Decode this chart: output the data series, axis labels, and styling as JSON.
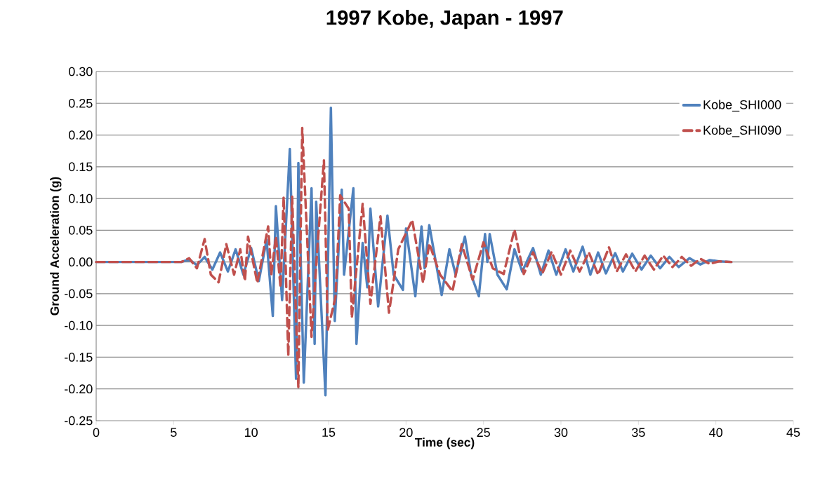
{
  "chart_data": {
    "type": "line",
    "title": "1997 Kobe, Japan - 1997",
    "xlabel": "Time (sec)",
    "ylabel": "Ground Acceleration (g)",
    "xlim": [
      0,
      45
    ],
    "xticks": [
      0,
      5,
      10,
      15,
      20,
      25,
      30,
      35,
      40,
      45
    ],
    "ylim": [
      -0.25,
      0.3
    ],
    "yticks": [
      {
        "value": -0.25,
        "label": "-0.25"
      },
      {
        "value": -0.2,
        "label": "-0.20"
      },
      {
        "value": -0.15,
        "label": "-0.15"
      },
      {
        "value": -0.1,
        "label": "-0.10"
      },
      {
        "value": -0.05,
        "label": "-0.05"
      },
      {
        "value": 0,
        "label": "0.00"
      },
      {
        "value": 0.05,
        "label": "0.05"
      },
      {
        "value": 0.1,
        "label": "0.10"
      },
      {
        "value": 0.15,
        "label": "0.15"
      },
      {
        "value": 0.2,
        "label": "0.20"
      },
      {
        "value": 0.25,
        "label": "0.25"
      },
      {
        "value": 0.3,
        "label": "0.30"
      }
    ],
    "grid": "y",
    "legend": "top right",
    "marker": "none",
    "series": [
      {
        "name": "Kobe_SHI000",
        "color": "#4f81bd",
        "line_style": "solid",
        "x": [
          0,
          5.5,
          6.0,
          6.5,
          7.0,
          7.5,
          8.0,
          8.5,
          9.0,
          9.5,
          10.0,
          10.5,
          11.0,
          11.4,
          11.6,
          12.0,
          12.5,
          12.9,
          13.05,
          13.4,
          13.9,
          14.1,
          14.2,
          14.8,
          15.15,
          15.4,
          15.85,
          16.0,
          16.6,
          16.8,
          17.2,
          17.5,
          17.7,
          18.2,
          18.8,
          19.2,
          19.8,
          20.0,
          20.6,
          21.0,
          21.2,
          21.5,
          22.3,
          22.8,
          23.2,
          23.8,
          24.2,
          24.7,
          25.1,
          25.25,
          25.4,
          25.9,
          26.5,
          27.0,
          27.5,
          28.2,
          28.7,
          29.2,
          29.7,
          30.3,
          30.8,
          31.4,
          31.9,
          32.4,
          32.9,
          33.5,
          34.0,
          34.6,
          35.2,
          35.8,
          36.4,
          37.0,
          37.6,
          38.3,
          39.0,
          39.6,
          40.2,
          41.0
        ],
        "values": [
          0,
          0,
          0.004,
          -0.005,
          0.008,
          -0.012,
          0.015,
          -0.015,
          0.02,
          -0.02,
          0.022,
          -0.03,
          0.035,
          -0.085,
          0.088,
          -0.06,
          0.178,
          -0.184,
          0.156,
          -0.19,
          0.116,
          -0.129,
          0.095,
          -0.21,
          0.243,
          -0.093,
          0.114,
          -0.02,
          0.116,
          -0.129,
          0.03,
          -0.04,
          0.084,
          -0.07,
          0.073,
          -0.02,
          -0.044,
          0.053,
          -0.054,
          0.056,
          -0.01,
          0.058,
          -0.052,
          0.02,
          -0.02,
          0.04,
          -0.02,
          -0.054,
          0.044,
          0.0,
          0.044,
          -0.02,
          -0.043,
          0.02,
          -0.015,
          0.022,
          -0.02,
          0.018,
          -0.02,
          0.02,
          -0.015,
          0.024,
          -0.02,
          0.015,
          -0.018,
          0.014,
          -0.015,
          0.013,
          -0.012,
          0.01,
          -0.01,
          0.008,
          -0.008,
          0.006,
          -0.004,
          0.003,
          0.001,
          0
        ]
      },
      {
        "name": "Kobe_SHI090",
        "color": "#c0504d",
        "line_style": "dashed",
        "x": [
          0,
          5.5,
          6.0,
          6.5,
          7.0,
          7.4,
          7.9,
          8.4,
          8.9,
          9.3,
          9.6,
          9.8,
          10.4,
          11.1,
          11.3,
          11.6,
          11.9,
          12.1,
          12.4,
          12.65,
          13.05,
          13.3,
          13.9,
          14.3,
          14.7,
          14.95,
          15.45,
          15.75,
          16.3,
          16.5,
          17.2,
          17.7,
          18.35,
          18.9,
          19.5,
          20.4,
          21.1,
          21.5,
          22.2,
          23.0,
          23.6,
          24.3,
          25.0,
          25.6,
          26.3,
          27.0,
          27.6,
          28.2,
          28.8,
          29.4,
          30.0,
          30.6,
          31.2,
          31.8,
          32.4,
          33.1,
          33.6,
          34.2,
          34.8,
          35.4,
          36.0,
          36.6,
          37.2,
          37.8,
          38.4,
          39.0,
          39.6,
          40.2,
          41.0
        ],
        "values": [
          0,
          0,
          0.006,
          -0.01,
          0.036,
          -0.02,
          -0.032,
          0.028,
          -0.02,
          0.02,
          -0.03,
          0.04,
          -0.033,
          0.056,
          -0.02,
          0.04,
          -0.04,
          0.103,
          -0.148,
          0.103,
          -0.198,
          0.211,
          -0.118,
          0.03,
          0.16,
          -0.107,
          -0.055,
          0.105,
          0.084,
          -0.088,
          0.092,
          -0.066,
          0.072,
          -0.08,
          0.02,
          0.066,
          -0.033,
          0.029,
          -0.02,
          -0.046,
          0.028,
          -0.028,
          0.031,
          -0.01,
          -0.019,
          0.051,
          -0.019,
          0.015,
          -0.018,
          0.016,
          -0.02,
          0.018,
          -0.015,
          0.015,
          -0.02,
          0.023,
          -0.015,
          0.012,
          -0.015,
          0.01,
          -0.012,
          0.01,
          -0.008,
          0.008,
          -0.006,
          0.005,
          -0.003,
          0.001,
          0
        ]
      }
    ]
  }
}
